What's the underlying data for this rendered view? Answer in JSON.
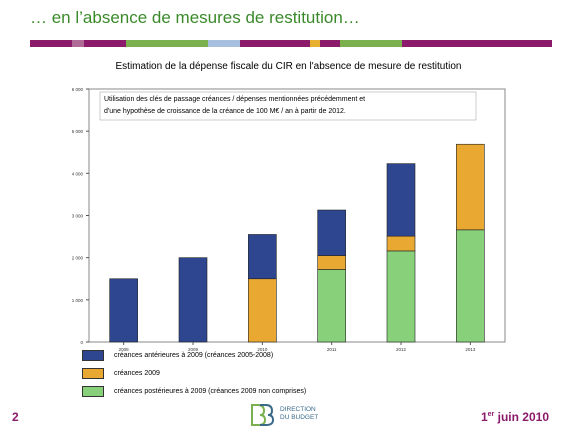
{
  "slide": {
    "title": "… en l’absence de mesures de restitution…",
    "page_number": "2",
    "date_prefix": "1",
    "date_sup": "er",
    "date_suffix": " juin 2010",
    "logo_line1": "DIRECTION",
    "logo_line2": "DU BUDGET",
    "stripe_colors": [
      "#8b1a6b",
      "#b06a98",
      "#8b1a6b",
      "#7ab04e",
      "#a8c0e0",
      "#8b1a6b",
      "#e8b030",
      "#8b1a6b",
      "#7ab04e",
      "#8b1a6b"
    ]
  },
  "chart_data": {
    "type": "bar",
    "stacked": true,
    "title": "Estimation de la dépense fiscale du CIR en l'absence de mesure de restitution",
    "annotation_line1": "Utilisation des clés de passage créances / dépenses mentionnées précédemment et",
    "annotation_line2": "d'une hypothèse de croissance de la créance de 100 M€ / an à partir de 2012.",
    "categories": [
      "2008",
      "2009",
      "2010",
      "2011",
      "2012",
      "2013"
    ],
    "ylim": [
      0,
      6000
    ],
    "yticks": [
      "0",
      "1 000",
      "2 000",
      "3 000",
      "4 000",
      "5 000",
      "6 000"
    ],
    "series": [
      {
        "name": "créances postérieures à 2009 (créances 2009 non comprises)",
        "color": "#88d07a",
        "values": [
          0,
          0,
          0,
          1720,
          2160,
          2660
        ]
      },
      {
        "name": "créances 2009",
        "color": "#e8a832",
        "values": [
          0,
          0,
          1500,
          330,
          350,
          2030
        ]
      },
      {
        "name": "créances antérieures à 2009 (créances 2005-2008)",
        "color": "#2e4690",
        "values": [
          1500,
          2000,
          1050,
          1080,
          1720,
          0
        ]
      }
    ],
    "legend_order": [
      2,
      1,
      0
    ],
    "grid": false
  }
}
